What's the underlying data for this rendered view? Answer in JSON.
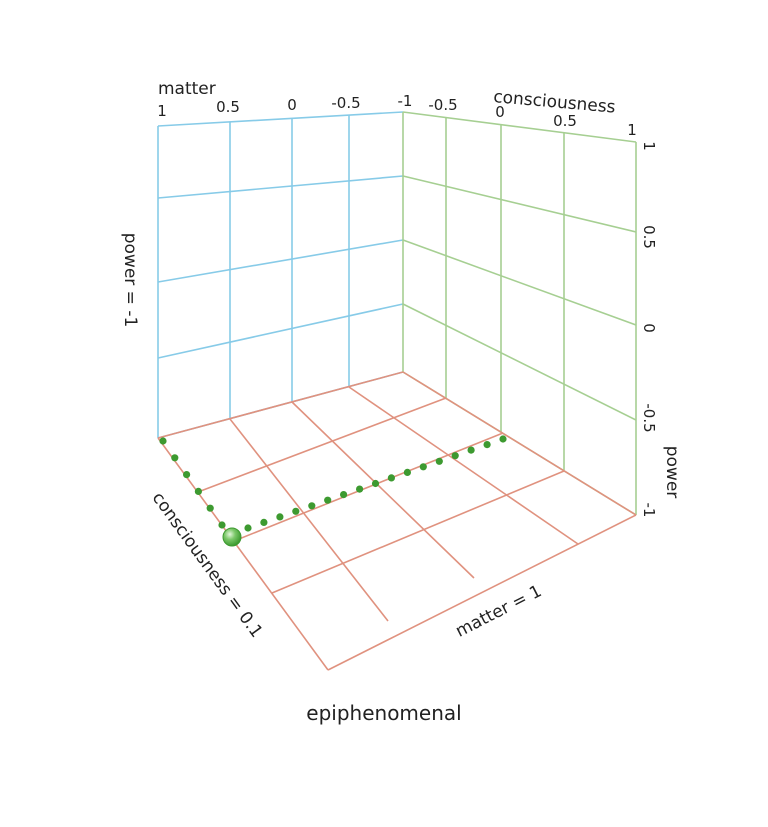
{
  "colors": {
    "back_wall": "#87cbe8",
    "side_wall": "#a6cf92",
    "floor": "#e0927f",
    "marker": "#3d9a30",
    "marker_highlight": "#b8e8a8"
  },
  "back_wall": {
    "axis_title": "matter",
    "ticks": [
      "1",
      "0.5",
      "0",
      "-0.5",
      "-1"
    ],
    "side_label": "power = -1"
  },
  "side_wall": {
    "axis_title": "consciousness",
    "ticks": [
      "-0.5",
      "0",
      "0.5",
      "1"
    ],
    "power_ticks": [
      "1",
      "0.5",
      "0",
      "-0.5",
      "-1"
    ],
    "power_title": "power"
  },
  "floor": {
    "left_edge_label": "consciousness = 0.1",
    "front_edge_label": "matter = 1"
  },
  "caption": "epiphenomenal"
}
